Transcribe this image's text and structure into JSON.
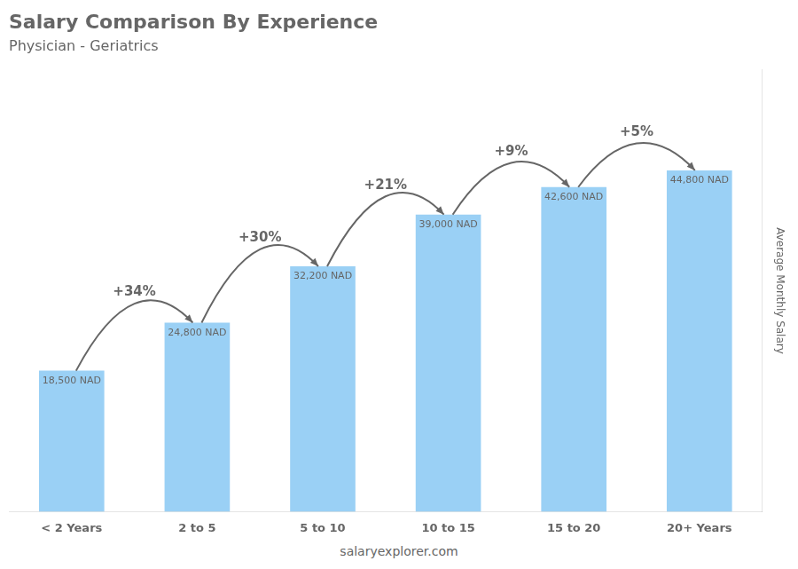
{
  "chart_data": {
    "type": "bar",
    "title": "Salary Comparison By Experience",
    "subtitle": "Physician - Geriatrics",
    "ylabel": "Average Monthly Salary",
    "categories": [
      "< 2 Years",
      "2 to 5",
      "5 to 10",
      "10 to 15",
      "15 to 20",
      "20+ Years"
    ],
    "values": [
      18500,
      24800,
      32200,
      39000,
      42600,
      44800
    ],
    "value_labels": [
      "18,500 NAD",
      "24,800 NAD",
      "32,200 NAD",
      "39,000 NAD",
      "42,600 NAD",
      "44,800 NAD"
    ],
    "annotations": [
      "+34%",
      "+30%",
      "+21%",
      "+9%",
      "+5%"
    ],
    "footer": "salaryexplorer.com",
    "ylim": [
      0,
      58000
    ],
    "grid": false,
    "legend": false,
    "data_labels": true,
    "tick_labels": "x"
  }
}
